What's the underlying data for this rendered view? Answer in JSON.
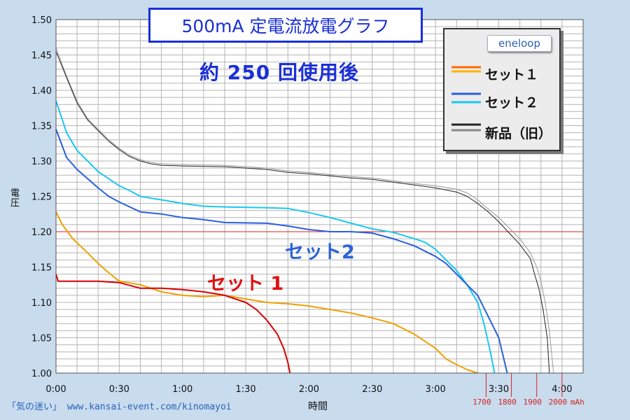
{
  "title": "500mA 定電流放電グラフ",
  "subtitle": "約 250 回使用後",
  "legend": {
    "brand": "eneloop",
    "items": [
      {
        "label": "セット１",
        "colors": [
          "#ff6a00",
          "#ffb400"
        ]
      },
      {
        "label": "セット２",
        "colors": [
          "#2a5fe0",
          "#18c8f0"
        ]
      },
      {
        "label": "新品（旧）",
        "colors": [
          "#222222",
          "#888888"
        ]
      }
    ]
  },
  "annotations": {
    "set2": "セット2",
    "set1": "セット 1"
  },
  "footer": "「気の迷い」 www.kansai-event.com/kinomayoi",
  "mah_unit": "mAh",
  "chart_data": {
    "type": "line",
    "title": "500mA 定電流放電グラフ",
    "xlabel": "時間",
    "ylabel": "電圧",
    "xlim": [
      0,
      250
    ],
    "ylim": [
      1.0,
      1.5
    ],
    "grid": true,
    "xticks": [
      {
        "v": 0,
        "label": "0:00"
      },
      {
        "v": 30,
        "label": "0:30"
      },
      {
        "v": 60,
        "label": "1:00"
      },
      {
        "v": 90,
        "label": "1:30"
      },
      {
        "v": 120,
        "label": "2:00"
      },
      {
        "v": 150,
        "label": "2:30"
      },
      {
        "v": 180,
        "label": "3:00"
      },
      {
        "v": 210,
        "label": "3:30"
      },
      {
        "v": 240,
        "label": "4:00"
      }
    ],
    "yticks": [
      "1.50",
      "1.45",
      "1.40",
      "1.35",
      "1.30",
      "1.25",
      "1.20",
      "1.15",
      "1.10",
      "1.05",
      "1.00"
    ],
    "reference_line": 1.2,
    "mah_marks": [
      {
        "t": 204,
        "label": "1700"
      },
      {
        "t": 216,
        "label": "1800"
      },
      {
        "t": 228,
        "label": "1900"
      },
      {
        "t": 240,
        "label": "2000"
      }
    ],
    "series": [
      {
        "color": "#999999",
        "width": 1,
        "points": [
          [
            0,
            1.46
          ],
          [
            5,
            1.42
          ],
          [
            10,
            1.385
          ],
          [
            15,
            1.36
          ],
          [
            20,
            1.345
          ],
          [
            25,
            1.33
          ],
          [
            30,
            1.318
          ],
          [
            35,
            1.308
          ],
          [
            40,
            1.302
          ],
          [
            45,
            1.298
          ],
          [
            50,
            1.296
          ],
          [
            60,
            1.295
          ],
          [
            80,
            1.294
          ],
          [
            90,
            1.292
          ],
          [
            100,
            1.29
          ],
          [
            110,
            1.286
          ],
          [
            120,
            1.284
          ],
          [
            130,
            1.281
          ],
          [
            140,
            1.278
          ],
          [
            150,
            1.276
          ],
          [
            160,
            1.272
          ],
          [
            170,
            1.268
          ],
          [
            180,
            1.265
          ],
          [
            190,
            1.26
          ],
          [
            195,
            1.255
          ],
          [
            200,
            1.245
          ],
          [
            205,
            1.232
          ],
          [
            210,
            1.22
          ],
          [
            215,
            1.205
          ],
          [
            220,
            1.19
          ],
          [
            225,
            1.17
          ],
          [
            228,
            1.15
          ],
          [
            230,
            1.13
          ],
          [
            232,
            1.1
          ],
          [
            234,
            1.06
          ],
          [
            236,
            1.0
          ]
        ]
      },
      {
        "color": "#222222",
        "width": 1,
        "points": [
          [
            0,
            1.455
          ],
          [
            5,
            1.418
          ],
          [
            10,
            1.382
          ],
          [
            15,
            1.358
          ],
          [
            20,
            1.343
          ],
          [
            25,
            1.328
          ],
          [
            30,
            1.316
          ],
          [
            35,
            1.306
          ],
          [
            40,
            1.3
          ],
          [
            45,
            1.296
          ],
          [
            50,
            1.294
          ],
          [
            60,
            1.293
          ],
          [
            80,
            1.292
          ],
          [
            90,
            1.29
          ],
          [
            100,
            1.288
          ],
          [
            110,
            1.284
          ],
          [
            120,
            1.282
          ],
          [
            130,
            1.279
          ],
          [
            140,
            1.276
          ],
          [
            150,
            1.274
          ],
          [
            160,
            1.27
          ],
          [
            170,
            1.266
          ],
          [
            180,
            1.262
          ],
          [
            190,
            1.256
          ],
          [
            195,
            1.25
          ],
          [
            200,
            1.24
          ],
          [
            205,
            1.228
          ],
          [
            210,
            1.214
          ],
          [
            215,
            1.198
          ],
          [
            220,
            1.182
          ],
          [
            225,
            1.162
          ],
          [
            227,
            1.14
          ],
          [
            229,
            1.12
          ],
          [
            231,
            1.09
          ],
          [
            233,
            1.05
          ],
          [
            234,
            1.0
          ]
        ]
      },
      {
        "color": "#18c8f0",
        "width": 2,
        "points": [
          [
            0,
            1.385
          ],
          [
            5,
            1.34
          ],
          [
            10,
            1.315
          ],
          [
            15,
            1.3
          ],
          [
            20,
            1.285
          ],
          [
            25,
            1.275
          ],
          [
            30,
            1.265
          ],
          [
            35,
            1.258
          ],
          [
            40,
            1.25
          ],
          [
            50,
            1.245
          ],
          [
            60,
            1.24
          ],
          [
            70,
            1.236
          ],
          [
            80,
            1.235
          ],
          [
            100,
            1.234
          ],
          [
            110,
            1.233
          ],
          [
            120,
            1.227
          ],
          [
            130,
            1.22
          ],
          [
            140,
            1.212
          ],
          [
            150,
            1.204
          ],
          [
            160,
            1.199
          ],
          [
            170,
            1.19
          ],
          [
            175,
            1.185
          ],
          [
            180,
            1.175
          ],
          [
            185,
            1.16
          ],
          [
            190,
            1.145
          ],
          [
            195,
            1.125
          ],
          [
            200,
            1.1
          ],
          [
            203,
            1.07
          ],
          [
            206,
            1.03
          ],
          [
            208,
            1.0
          ]
        ]
      },
      {
        "color": "#2a5fe0",
        "width": 2,
        "points": [
          [
            0,
            1.345
          ],
          [
            5,
            1.305
          ],
          [
            10,
            1.288
          ],
          [
            15,
            1.275
          ],
          [
            20,
            1.262
          ],
          [
            25,
            1.25
          ],
          [
            30,
            1.242
          ],
          [
            35,
            1.235
          ],
          [
            40,
            1.228
          ],
          [
            50,
            1.225
          ],
          [
            60,
            1.22
          ],
          [
            70,
            1.217
          ],
          [
            80,
            1.213
          ],
          [
            100,
            1.212
          ],
          [
            110,
            1.208
          ],
          [
            120,
            1.203
          ],
          [
            130,
            1.2
          ],
          [
            140,
            1.2
          ],
          [
            150,
            1.198
          ],
          [
            160,
            1.19
          ],
          [
            170,
            1.18
          ],
          [
            180,
            1.165
          ],
          [
            185,
            1.155
          ],
          [
            190,
            1.14
          ],
          [
            195,
            1.125
          ],
          [
            200,
            1.11
          ],
          [
            205,
            1.08
          ],
          [
            210,
            1.05
          ],
          [
            214,
            1.0
          ]
        ]
      },
      {
        "color": "#f0a000",
        "width": 2,
        "points": [
          [
            0,
            1.228
          ],
          [
            3,
            1.21
          ],
          [
            8,
            1.19
          ],
          [
            15,
            1.17
          ],
          [
            20,
            1.155
          ],
          [
            25,
            1.142
          ],
          [
            30,
            1.13
          ],
          [
            40,
            1.125
          ],
          [
            50,
            1.115
          ],
          [
            60,
            1.11
          ],
          [
            70,
            1.108
          ],
          [
            80,
            1.11
          ],
          [
            90,
            1.105
          ],
          [
            100,
            1.1
          ],
          [
            110,
            1.098
          ],
          [
            120,
            1.095
          ],
          [
            130,
            1.09
          ],
          [
            140,
            1.085
          ],
          [
            150,
            1.078
          ],
          [
            160,
            1.07
          ],
          [
            170,
            1.055
          ],
          [
            175,
            1.045
          ],
          [
            180,
            1.035
          ],
          [
            185,
            1.02
          ],
          [
            190,
            1.012
          ],
          [
            195,
            1.005
          ],
          [
            200,
            1.0
          ]
        ]
      },
      {
        "color": "#d80000",
        "width": 2,
        "points": [
          [
            0,
            1.14
          ],
          [
            1,
            1.13
          ],
          [
            10,
            1.13
          ],
          [
            20,
            1.13
          ],
          [
            30,
            1.128
          ],
          [
            40,
            1.12
          ],
          [
            50,
            1.12
          ],
          [
            60,
            1.118
          ],
          [
            70,
            1.115
          ],
          [
            80,
            1.11
          ],
          [
            90,
            1.1
          ],
          [
            95,
            1.09
          ],
          [
            100,
            1.075
          ],
          [
            105,
            1.055
          ],
          [
            108,
            1.035
          ],
          [
            110,
            1.015
          ],
          [
            111,
            1.0
          ]
        ]
      }
    ]
  }
}
